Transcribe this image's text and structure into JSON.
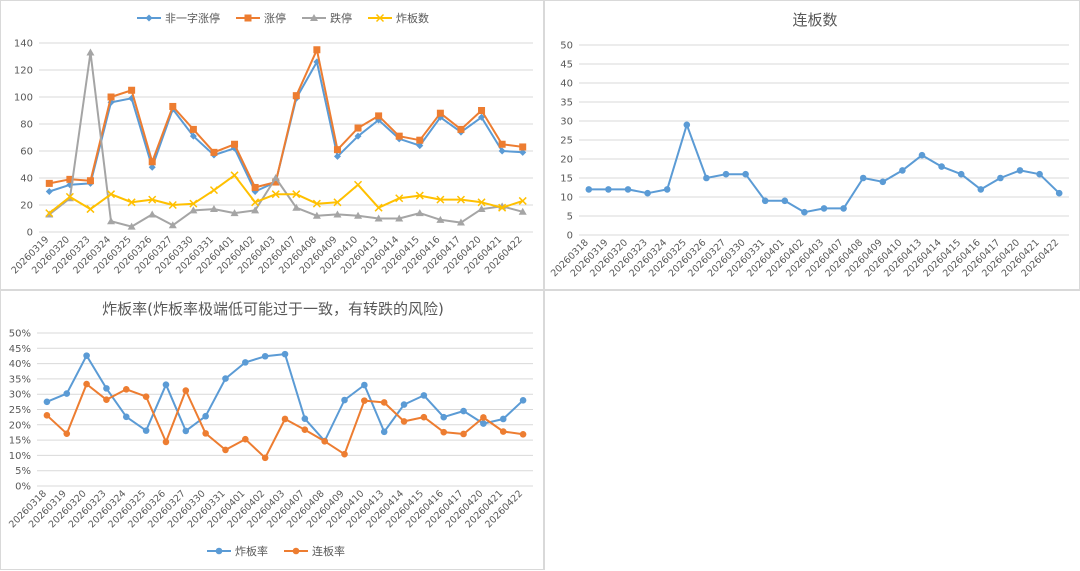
{
  "chart_data": [
    {
      "type": "line",
      "title": "",
      "categories": [
        "20260319",
        "20260320",
        "20260323",
        "20260324",
        "20260325",
        "20260326",
        "20260327",
        "20260330",
        "20260331",
        "20260401",
        "20260402",
        "20260403",
        "20260407",
        "20260408",
        "20260409",
        "20260410",
        "20260413",
        "20260414",
        "20260415",
        "20260416",
        "20260417",
        "20260420",
        "20260421",
        "20260422"
      ],
      "ylim": [
        0,
        140
      ],
      "yticks": [
        0,
        20,
        40,
        60,
        80,
        100,
        120,
        140
      ],
      "legend_position": "top",
      "grid": true,
      "series": [
        {
          "name": "非一字涨停",
          "color": "#5b9bd5",
          "marker": "diamond",
          "values": [
            30,
            35,
            36,
            96,
            99,
            48,
            91,
            71,
            57,
            62,
            30,
            37,
            99,
            126,
            56,
            71,
            83,
            69,
            64,
            85,
            74,
            85,
            60,
            59
          ]
        },
        {
          "name": "涨停",
          "color": "#ed7d31",
          "marker": "square",
          "values": [
            36,
            39,
            38,
            100,
            105,
            52,
            93,
            76,
            59,
            65,
            33,
            37,
            101,
            135,
            61,
            77,
            86,
            71,
            68,
            88,
            76,
            90,
            65,
            63
          ]
        },
        {
          "name": "跌停",
          "color": "#a5a5a5",
          "marker": "triangle",
          "values": [
            13,
            25,
            133,
            8,
            4,
            13,
            5,
            16,
            17,
            14,
            16,
            40,
            18,
            12,
            13,
            12,
            10,
            10,
            14,
            9,
            7,
            17,
            19,
            15
          ]
        },
        {
          "name": "炸板数",
          "color": "#ffc000",
          "marker": "x",
          "values": [
            14,
            26,
            17,
            28,
            22,
            24,
            20,
            21,
            31,
            42,
            22,
            28,
            28,
            21,
            22,
            35,
            18,
            25,
            27,
            24,
            24,
            22,
            18,
            23
          ]
        }
      ]
    },
    {
      "type": "line",
      "title": "连板数",
      "categories": [
        "20260318",
        "20260319",
        "20260320",
        "20260323",
        "20260324",
        "20260325",
        "20260326",
        "20260327",
        "20260330",
        "20260331",
        "20260401",
        "20260402",
        "20260403",
        "20260407",
        "20260408",
        "20260409",
        "20260410",
        "20260413",
        "20260414",
        "20260415",
        "20260416",
        "20260417",
        "20260420",
        "20260421",
        "20260422"
      ],
      "ylim": [
        0,
        50
      ],
      "yticks": [
        0,
        5,
        10,
        15,
        20,
        25,
        30,
        35,
        40,
        45,
        50
      ],
      "grid": true,
      "series": [
        {
          "name": "",
          "color": "#5b9bd5",
          "marker": "circle",
          "values": [
            12,
            12,
            12,
            11,
            12,
            29,
            15,
            16,
            16,
            9,
            9,
            6,
            7,
            7,
            15,
            14,
            17,
            21,
            18,
            16,
            12,
            15,
            17,
            16,
            11
          ]
        }
      ]
    },
    {
      "type": "line",
      "title": "炸板率(炸板率极端低可能过于一致，有转跌的风险)",
      "categories": [
        "20260318",
        "20260319",
        "20260320",
        "20260323",
        "20260324",
        "20260325",
        "20260326",
        "20260327",
        "20260330",
        "20260331",
        "20260401",
        "20260402",
        "20260403",
        "20260407",
        "20260408",
        "20260409",
        "20260410",
        "20260413",
        "20260414",
        "20260415",
        "20260416",
        "20260417",
        "20260420",
        "20260421",
        "20260422"
      ],
      "ylim": [
        0,
        50
      ],
      "yticks": [
        "0%",
        "5%",
        "10%",
        "15%",
        "20%",
        "25%",
        "30%",
        "35%",
        "40%",
        "45%",
        "50%"
      ],
      "legend_position": "bottom",
      "grid": true,
      "series": [
        {
          "name": "炸板率",
          "color": "#5b9bd5",
          "marker": "circle",
          "values": [
            27.5,
            30.2,
            42.6,
            31.9,
            22.6,
            18.1,
            33.1,
            18,
            22.8,
            35.1,
            40.4,
            42.4,
            43.1,
            22,
            14.7,
            28.1,
            33,
            17.7,
            26.6,
            29.6,
            22.5,
            24.5,
            20.4,
            21.9,
            28
          ]
        },
        {
          "name": "连板率",
          "color": "#ed7d31",
          "marker": "circle",
          "values": [
            23.1,
            17.1,
            33.3,
            28.2,
            31.6,
            29.2,
            14.4,
            31.2,
            17.2,
            11.8,
            15.3,
            9.2,
            21.9,
            18.4,
            14.6,
            10.4,
            27.9,
            27.3,
            21.1,
            22.5,
            17.6,
            17,
            22.4,
            17.8,
            16.9
          ]
        }
      ]
    }
  ]
}
